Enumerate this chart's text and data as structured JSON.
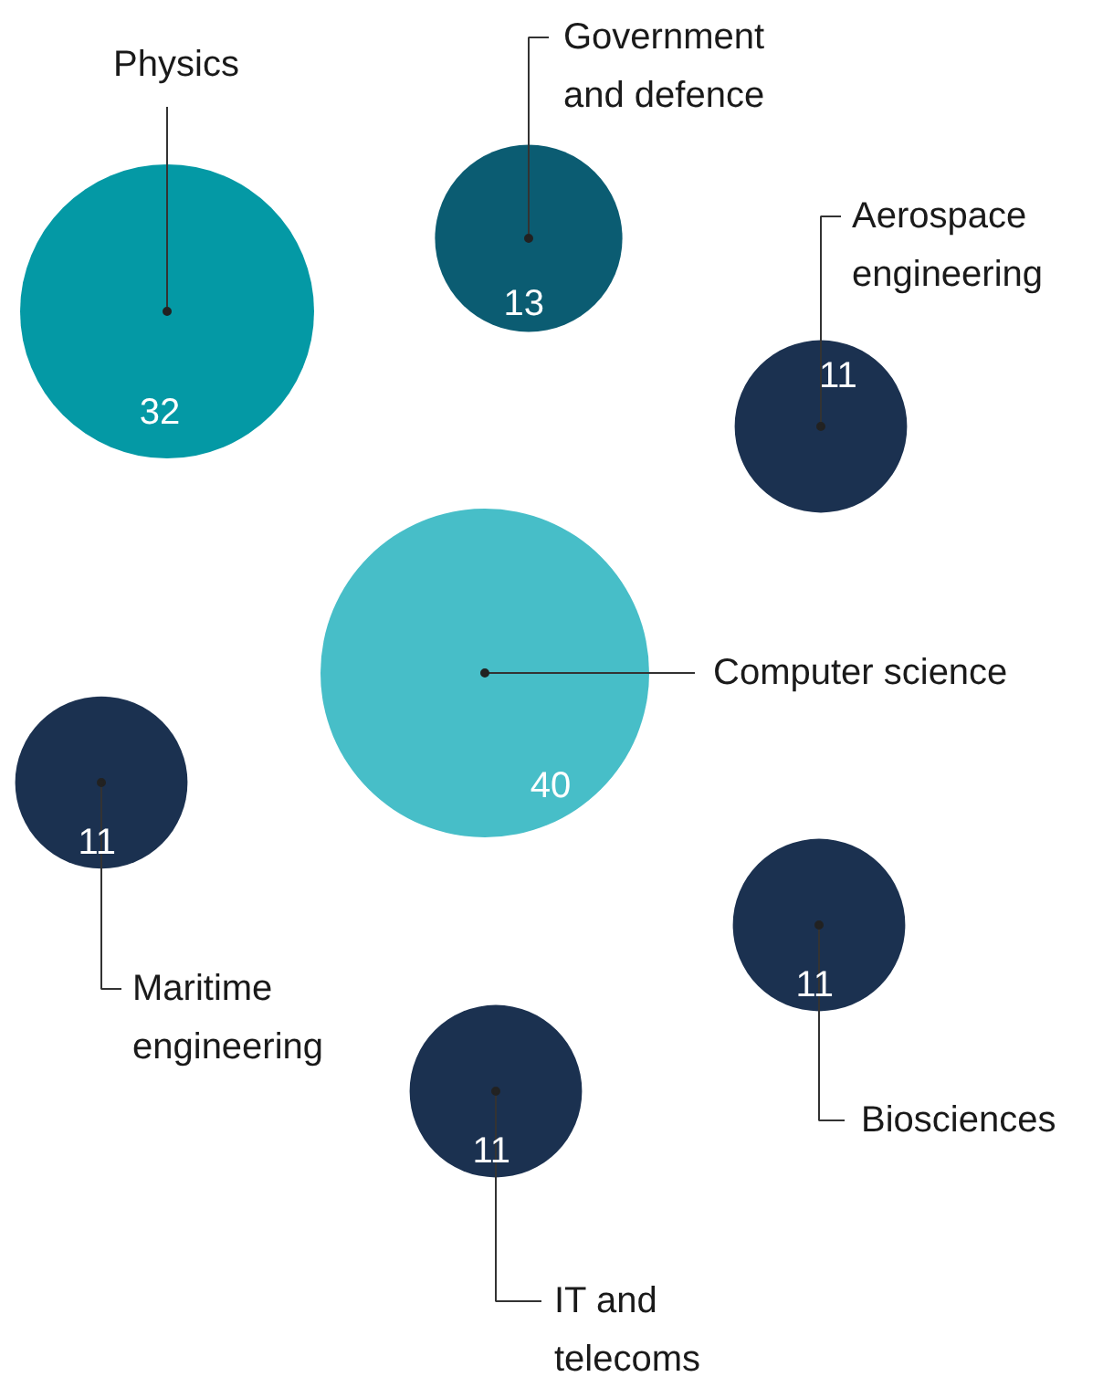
{
  "chart_data": {
    "type": "other",
    "categories": [
      "Physics",
      "Government and defence",
      "Aerospace engineering",
      "Computer science",
      "Maritime engineering",
      "IT and telecoms",
      "Biosciences"
    ],
    "values": [
      32,
      13,
      11,
      40,
      11,
      11,
      11
    ],
    "colors": [
      "#0499a5",
      "#0b5c72",
      "#1b3150",
      "#47bec8",
      "#1b3150",
      "#1b3150",
      "#1b3150"
    ],
    "data_labels": true
  }
}
